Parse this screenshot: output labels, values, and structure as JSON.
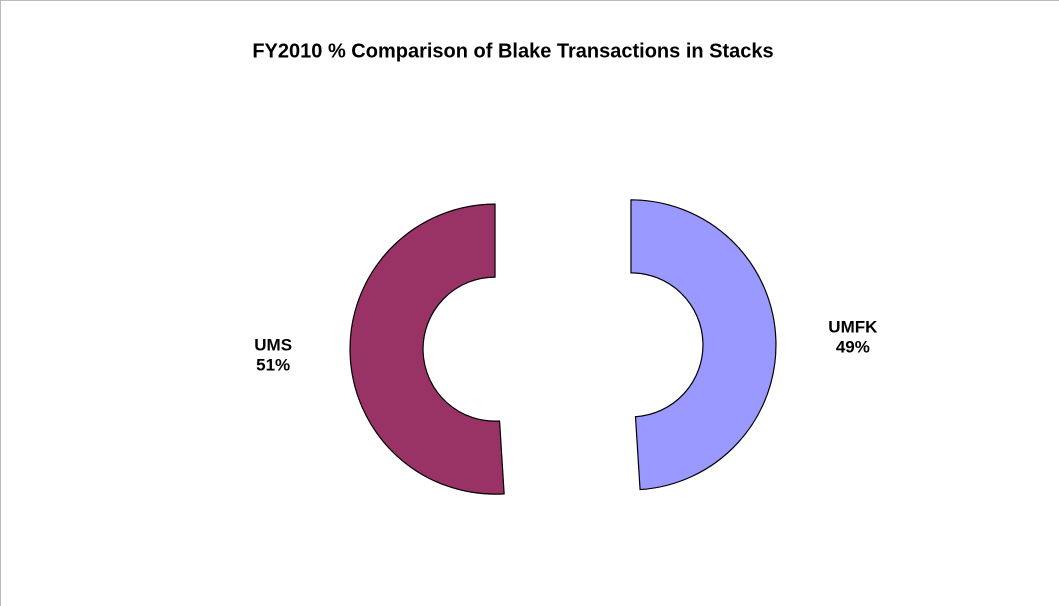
{
  "chart_data": {
    "type": "donut",
    "title": "FY2010 % Comparison of Blake Transactions in Stacks",
    "categories": [
      "UMFK",
      "UMS"
    ],
    "values": [
      49,
      51
    ],
    "value_labels": [
      "49%",
      "51%"
    ],
    "colors": [
      "#9999ff",
      "#993366"
    ]
  }
}
